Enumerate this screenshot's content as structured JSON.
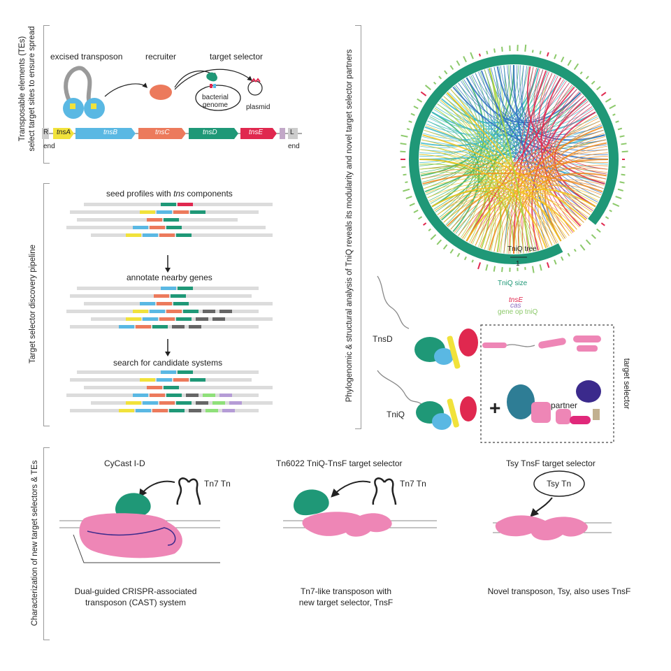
{
  "panel_a": {
    "side_label_line1": "Transposable elements (TEs)",
    "side_label_line2": "select target sites  to ensure spread",
    "excised_transposon": "excised transposon",
    "recruiter": "recruiter",
    "target_selector": "target selector",
    "bacterial_genome_line1": "bacterial",
    "bacterial_genome_line2": "genome",
    "plasmid": "plasmid",
    "gene_R": "R",
    "gene_tnsA": "tnsA",
    "gene_tnsB": "tnsB",
    "gene_tnsC": "tnsC",
    "gene_tnsD": "tnsD",
    "gene_tnsE": "tnsE",
    "gene_L": "L",
    "end_left": "end",
    "end_right": "end"
  },
  "panel_b": {
    "side_label": "Target selector discovery pipeline",
    "step1": "seed profiles with",
    "step1_italic": "tns",
    "step1_tail": "components",
    "step2": "annotate nearby genes",
    "step3": "search for candidate systems"
  },
  "panel_c": {
    "side_label": "Phylogenomic & structural analysis of TniQ reveals its modularity and novel target selector partners",
    "tree_label": "TniQ tree",
    "scale": "1",
    "legend_size": "TniQ size",
    "legend_tnsE": "tnsE",
    "legend_cas": "cas",
    "legend_gene": "gene op tniQ",
    "tnsD": "TnsD",
    "tniQ": "TniQ",
    "plus": "+",
    "partner": "partner",
    "target_selector_vert": "target selector"
  },
  "panel_d": {
    "side_label": "Characterization of new target selectors & TEs",
    "title1": "CyCast I-D",
    "title2": "Tn6022 TniQ-TnsF target selector",
    "title3": "Tsy TnsF target selector",
    "tn1": "Tn7 Tn",
    "tn2": "Tn7 Tn",
    "tn3": "Tsy Tn",
    "caption1_line1": "Dual-guided CRISPR-associated",
    "caption1_line2": "transposon (CAST) system",
    "caption2_line1": "Tn7-like transposon with",
    "caption2_line2": "new target selector, TnsF",
    "caption3": "Novel transposon, Tsy, also uses TnsF"
  },
  "colors": {
    "tnsA": "#f1e23b",
    "tnsB": "#5ab8e3",
    "tnsC": "#ec7a5c",
    "tnsD": "#1f9877",
    "tnsE": "#e0284f",
    "pink": "#ee86b6",
    "green": "#1f9877",
    "grey": "#dcdcdc"
  }
}
